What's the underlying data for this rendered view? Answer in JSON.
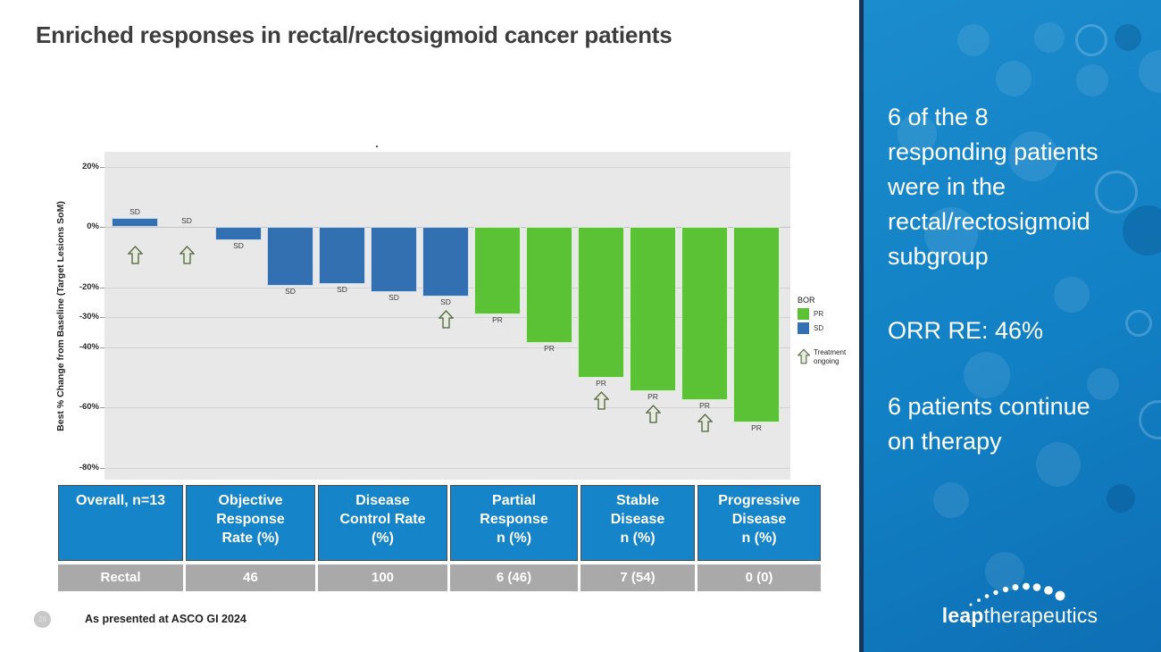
{
  "slide": {
    "title": "Enriched responses in rectal/rectosigmoid cancer patients",
    "page_number": "26",
    "footnote": "As presented at ASCO GI 2024"
  },
  "sidebar": {
    "paragraph1_lines": [
      "6 of the 8",
      "responding patients",
      "were in the",
      "rectal/rectosigmoid",
      "subgroup"
    ],
    "paragraph2": "ORR RE: 46%",
    "paragraph3_lines": [
      "6 patients continue",
      "on therapy"
    ],
    "logo_bold": "leap",
    "logo_light": "therapeutics"
  },
  "chart_data": {
    "type": "bar",
    "subtype": "waterfall",
    "title": ".",
    "ylabel": "Best % Change from Baseline (Target Lesions SoM)",
    "ylim": [
      -84,
      25
    ],
    "yticks": [
      20,
      0,
      -20,
      -30,
      -40,
      -60,
      -80
    ],
    "ytick_labels": [
      "20%",
      "0%",
      "-20%",
      "-30%",
      "-40%",
      "-60%",
      "-80%"
    ],
    "grid": true,
    "legend_position": "right",
    "legend": {
      "title": "BOR",
      "entries": [
        {
          "label": "PR",
          "color_key": "bar_green"
        },
        {
          "label": "SD",
          "color_key": "bar_blue"
        }
      ],
      "ongoing_label": "Treatment ongoing"
    },
    "bars": [
      {
        "bor": "SD",
        "value": 3,
        "ongoing": true
      },
      {
        "bor": "SD",
        "value": 0,
        "ongoing": true
      },
      {
        "bor": "SD",
        "value": -4.5,
        "ongoing": false
      },
      {
        "bor": "SD",
        "value": -19.5,
        "ongoing": false
      },
      {
        "bor": "SD",
        "value": -19,
        "ongoing": false
      },
      {
        "bor": "SD",
        "value": -21.5,
        "ongoing": false
      },
      {
        "bor": "SD",
        "value": -23,
        "ongoing": true
      },
      {
        "bor": "PR",
        "value": -29,
        "ongoing": false
      },
      {
        "bor": "PR",
        "value": -38.5,
        "ongoing": false
      },
      {
        "bor": "PR",
        "value": -50,
        "ongoing": true
      },
      {
        "bor": "PR",
        "value": -54.5,
        "ongoing": true
      },
      {
        "bor": "PR",
        "value": -57.5,
        "ongoing": true
      },
      {
        "bor": "PR",
        "value": -65,
        "ongoing": false
      }
    ]
  },
  "table": {
    "header_lines": [
      [
        "Overall, n=13"
      ],
      [
        "Objective",
        "Response",
        "Rate (%)"
      ],
      [
        "Disease",
        "Control Rate",
        "(%)"
      ],
      [
        "Partial",
        "Response",
        "n (%)"
      ],
      [
        "Stable",
        "Disease",
        "n (%)"
      ],
      [
        "Progressive",
        "Disease",
        "n (%)"
      ]
    ],
    "rows": [
      [
        "Rectal",
        "46",
        "100",
        "6 (46)",
        "7 (54)",
        "0 (0)"
      ]
    ]
  },
  "theme": {
    "accent_blue": "#1584c8",
    "sidebar_blue_top": "#1b8ccd",
    "sidebar_blue_bottom": "#0e6fb5",
    "sidebar_edge_navy": "#16365c",
    "bar_blue": "#3270b2",
    "bar_green": "#5bc236",
    "plot_bg": "#e8e8e8",
    "grid_line": "#d2d2d2",
    "table_row_gray": "#a9a9a9",
    "arrow_outline": "#5a6e48",
    "arrow_fill": "#e7eadf",
    "title_color": "#3d3d3d",
    "page_circle": "#c9c9c9"
  }
}
